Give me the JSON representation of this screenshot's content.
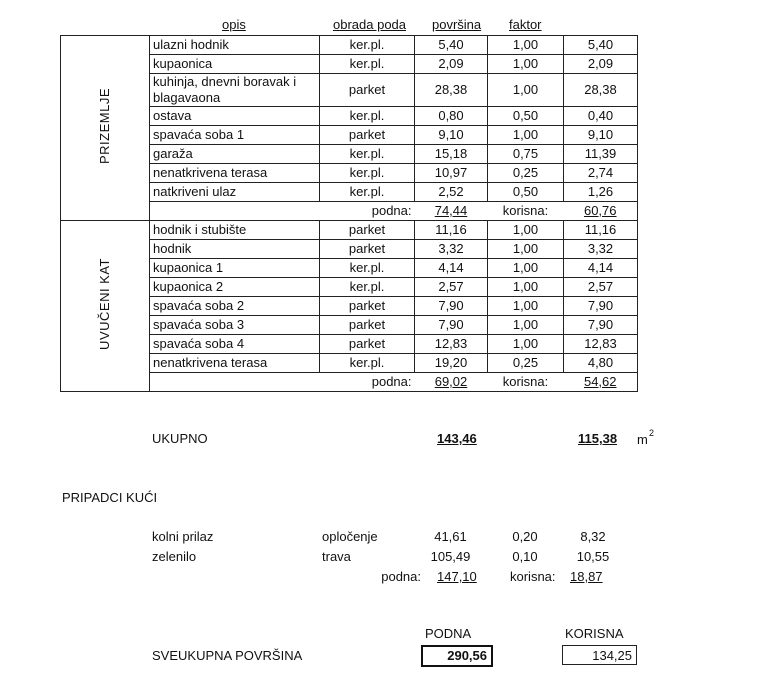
{
  "header": {
    "opis": "opis",
    "obrada_poda": "obrada poda",
    "povrsina": "površina",
    "faktor": "faktor"
  },
  "groups": [
    {
      "label": "PRIZEMLJE",
      "rows": [
        [
          "ulazni hodnik",
          "ker.pl.",
          "5,40",
          "1,00",
          "5,40"
        ],
        [
          "kupaonica",
          "ker.pl.",
          "2,09",
          "1,00",
          "2,09"
        ],
        [
          "kuhinja, dnevni boravak i blagavaona",
          "parket",
          "28,38",
          "1,00",
          "28,38"
        ],
        [
          "ostava",
          "ker.pl.",
          "0,80",
          "0,50",
          "0,40"
        ],
        [
          "spavaća soba 1",
          "parket",
          "9,10",
          "1,00",
          "9,10"
        ],
        [
          "garaža",
          "ker.pl.",
          "15,18",
          "0,75",
          "11,39"
        ],
        [
          "nenatkrivena terasa",
          "ker.pl.",
          "10,97",
          "0,25",
          "2,74"
        ],
        [
          "natkriveni ulaz",
          "ker.pl.",
          "2,52",
          "0,50",
          "1,26"
        ]
      ],
      "podna_label": "podna:",
      "podna": "74,44",
      "korisna_label": "korisna:",
      "korisna": "60,76"
    },
    {
      "label": "UVUČENI KAT",
      "rows": [
        [
          "hodnik i stubište",
          "parket",
          "11,16",
          "1,00",
          "11,16"
        ],
        [
          "hodnik",
          "parket",
          "3,32",
          "1,00",
          "3,32"
        ],
        [
          "kupaonica 1",
          "ker.pl.",
          "4,14",
          "1,00",
          "4,14"
        ],
        [
          "kupaonica 2",
          "ker.pl.",
          "2,57",
          "1,00",
          "2,57"
        ],
        [
          "spavaća soba 2",
          "parket",
          "7,90",
          "1,00",
          "7,90"
        ],
        [
          "spavaća soba 3",
          "parket",
          "7,90",
          "1,00",
          "7,90"
        ],
        [
          "spavaća soba 4",
          "parket",
          "12,83",
          "1,00",
          "12,83"
        ],
        [
          "nenatkrivena terasa",
          "ker.pl.",
          "19,20",
          "0,25",
          "4,80"
        ]
      ],
      "podna_label": "podna:",
      "podna": "69,02",
      "korisna_label": "korisna:",
      "korisna": "54,62"
    }
  ],
  "ukupno": {
    "label": "UKUPNO",
    "podna": "143,46",
    "korisna": "115,38",
    "unit": "m",
    "unit_exp": "2"
  },
  "pripadci": {
    "title": "PRIPADCI KUĆI",
    "rows": [
      [
        "kolni prilaz",
        "opločenje",
        "41,61",
        "0,20",
        "8,32"
      ],
      [
        "zelenilo",
        "trava",
        "105,49",
        "0,10",
        "10,55"
      ]
    ],
    "podna_label": "podna:",
    "podna": "147,10",
    "korisna_label": "korisna:",
    "korisna": "18,87"
  },
  "total": {
    "label": "SVEUKUPNA POVRŠINA",
    "podna_header": "PODNA",
    "podna": "290,56",
    "korisna_header": "KORISNA",
    "korisna": "134,25"
  }
}
